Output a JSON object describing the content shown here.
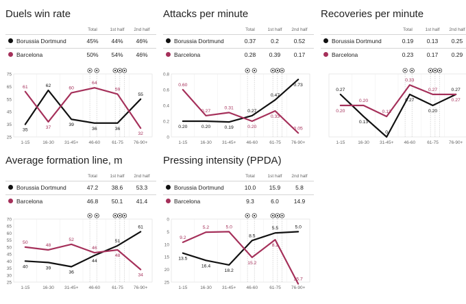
{
  "colors": {
    "dortmund": "#111111",
    "barcelona": "#a5305a",
    "grid": "#dcdcdc",
    "event_line": "#bdbdbd"
  },
  "columns": {
    "total": "Total",
    "first_half": "1st half",
    "second_half": "2nd half"
  },
  "teams": {
    "dortmund": "Borussia Dortmund",
    "barcelona": "Barcelona"
  },
  "event_icons": [
    "football-icon",
    "football-icon",
    "football-icon",
    "football-icon",
    "football-icon"
  ],
  "panels": [
    {
      "title": "Duels win rate",
      "rows": [
        {
          "team": "Borussia Dortmund",
          "total": "45%",
          "h1": "44%",
          "h2": "46%"
        },
        {
          "team": "Barcelona",
          "total": "50%",
          "h1": "54%",
          "h2": "46%"
        }
      ]
    },
    {
      "title": "Attacks per minute",
      "rows": [
        {
          "team": "Borussia Dortmund",
          "total": "0.37",
          "h1": "0.2",
          "h2": "0.52"
        },
        {
          "team": "Barcelona",
          "total": "0.28",
          "h1": "0.39",
          "h2": "0.17"
        }
      ]
    },
    {
      "title": "Recoveries per minute",
      "rows": [
        {
          "team": "Borussia Dortmund",
          "total": "0.19",
          "h1": "0.13",
          "h2": "0.25"
        },
        {
          "team": "Barcelona",
          "total": "0.23",
          "h1": "0.17",
          "h2": "0.29"
        }
      ]
    },
    {
      "title": "Average formation line, m",
      "rows": [
        {
          "team": "Borussia Dortmund",
          "total": "47.2",
          "h1": "38.6",
          "h2": "53.3"
        },
        {
          "team": "Barcelona",
          "total": "46.8",
          "h1": "50.1",
          "h2": "41.4"
        }
      ]
    },
    {
      "title": "Pressing intensity (PPDA)",
      "rows": [
        {
          "team": "Borussia Dortmund",
          "total": "10.0",
          "h1": "15.9",
          "h2": "5.8"
        },
        {
          "team": "Barcelona",
          "total": "9.3",
          "h1": "6.0",
          "h2": "14.9"
        }
      ]
    }
  ],
  "chart_data": [
    {
      "type": "line",
      "title": "Duels win rate",
      "categories": [
        "1-15",
        "16-30",
        "31-45+",
        "46-60",
        "61-75",
        "76-90+"
      ],
      "ylim": [
        25,
        75
      ],
      "yticks": [
        25,
        35,
        45,
        55,
        65,
        75
      ],
      "inverted": false,
      "event_positions": [
        3.3,
        3.6,
        4.4,
        4.6,
        4.8
      ],
      "series": [
        {
          "name": "Borussia Dortmund",
          "values": [
            35,
            62,
            39,
            36,
            36,
            55
          ],
          "labels": [
            "35",
            "62",
            "39",
            "36",
            "36",
            "55"
          ]
        },
        {
          "name": "Barcelona",
          "values": [
            61,
            37,
            60,
            64,
            59,
            32
          ],
          "labels": [
            "61",
            "37",
            "60",
            "64",
            "59",
            "32"
          ]
        }
      ]
    },
    {
      "type": "line",
      "title": "Attacks per minute",
      "categories": [
        "1-15",
        "16-30",
        "31-45+",
        "46-60",
        "61-75",
        "76-90+"
      ],
      "ylim": [
        0,
        0.8
      ],
      "yticks": [
        0,
        0.2,
        0.4,
        0.6,
        0.8
      ],
      "inverted": false,
      "event_positions": [
        3.3,
        3.6,
        4.4,
        4.6,
        4.8
      ],
      "series": [
        {
          "name": "Borussia Dortmund",
          "values": [
            0.2,
            0.2,
            0.19,
            0.27,
            0.47,
            0.73
          ],
          "labels": [
            "0.20",
            "0.20",
            "0.19",
            "0.27",
            "0.47",
            "0.73"
          ]
        },
        {
          "name": "Barcelona",
          "values": [
            0.6,
            0.27,
            0.31,
            0.2,
            0.33,
            0.05
          ],
          "labels": [
            "0.60",
            "0.27",
            "0.31",
            "0.20",
            "0.33",
            "0.05"
          ]
        }
      ]
    },
    {
      "type": "line",
      "title": "Recoveries per minute",
      "categories": [
        "1-15",
        "16-30",
        "31-45+",
        "46-60",
        "61-75",
        "76-90+"
      ],
      "ylim": [
        0,
        0.4
      ],
      "yticks": [
        0,
        0.1,
        0.2,
        0.3,
        0.4
      ],
      "show_yticks": false,
      "inverted": false,
      "event_positions": [
        3.3,
        3.6,
        4.4,
        4.6,
        4.8
      ],
      "series": [
        {
          "name": "Borussia Dortmund",
          "values": [
            0.27,
            0.13,
            0,
            0.27,
            0.2,
            0.27
          ],
          "labels": [
            "0.27",
            "0.13",
            "0",
            "0.27",
            "0.20",
            "0.27"
          ]
        },
        {
          "name": "Barcelona",
          "values": [
            0.2,
            0.2,
            0.13,
            0.33,
            0.27,
            0.27
          ],
          "labels": [
            "0.20",
            "0.20",
            "0.13",
            "0.33",
            "0.27",
            "0.27"
          ]
        }
      ]
    },
    {
      "type": "line",
      "title": "Average formation line, m",
      "categories": [
        "1-15",
        "16-30",
        "31-45+",
        "46-60",
        "61-75",
        "76-90+"
      ],
      "ylim": [
        25,
        70
      ],
      "yticks": [
        25,
        30,
        35,
        40,
        45,
        50,
        55,
        60,
        65,
        70
      ],
      "inverted": false,
      "event_positions": [
        3.3,
        3.6,
        4.4,
        4.6,
        4.8
      ],
      "series": [
        {
          "name": "Borussia Dortmund",
          "values": [
            40,
            39,
            36,
            44,
            51,
            61
          ],
          "labels": [
            "40",
            "39",
            "36",
            "44",
            "51",
            "61"
          ]
        },
        {
          "name": "Barcelona",
          "values": [
            50,
            48,
            52,
            46,
            48,
            34
          ],
          "labels": [
            "50",
            "48",
            "52",
            "46",
            "48",
            "34"
          ]
        }
      ]
    },
    {
      "type": "line",
      "title": "Pressing intensity (PPDA)",
      "categories": [
        "1-15",
        "16-30",
        "31-45+",
        "46-60",
        "61-75",
        "76-90+"
      ],
      "ylim": [
        0,
        25
      ],
      "yticks": [
        0,
        5,
        10,
        15,
        20,
        25
      ],
      "inverted": true,
      "event_positions": [
        3.3,
        3.6,
        4.4,
        4.6,
        4.8
      ],
      "series": [
        {
          "name": "Borussia Dortmund",
          "values": [
            13.5,
            16.4,
            18.2,
            8.5,
            5.5,
            5.0
          ],
          "labels": [
            "13.5",
            "16.4",
            "18.2",
            "8.5",
            "5.5",
            "5.0"
          ]
        },
        {
          "name": "Barcelona",
          "values": [
            9.2,
            5.2,
            5.0,
            15.2,
            8.2,
            25.7
          ],
          "labels": [
            "9.2",
            "5.2",
            "5.0",
            "15.2",
            "8.2",
            "25.7"
          ]
        }
      ]
    }
  ]
}
